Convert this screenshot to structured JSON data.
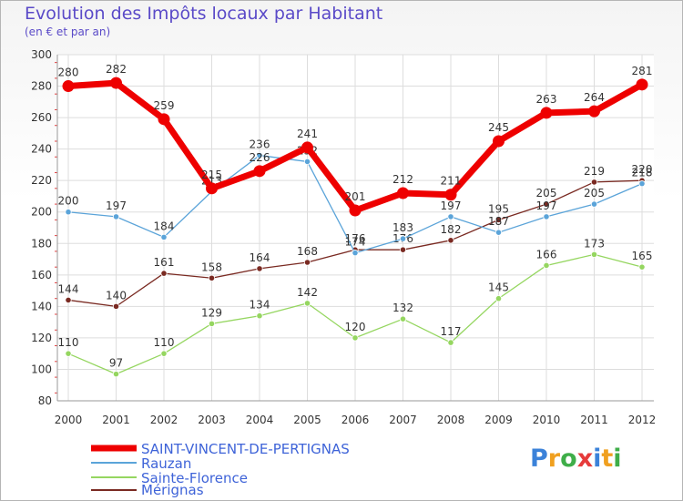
{
  "chart_data": {
    "type": "line",
    "title": "Evolution des Impôts locaux par Habitant",
    "subtitle": "(en € et par an)",
    "xlabel": "",
    "ylabel": "",
    "x": [
      "2000",
      "2001",
      "2002",
      "2003",
      "2004",
      "2005",
      "2006",
      "2007",
      "2008",
      "2009",
      "2010",
      "2011",
      "2012"
    ],
    "ylim": [
      80,
      300
    ],
    "yticks": [
      80,
      100,
      120,
      140,
      160,
      180,
      200,
      220,
      240,
      260,
      280,
      300
    ],
    "grid": true,
    "legend_position": "bottom-left",
    "series": [
      {
        "name": "Mérignas",
        "color": "#7a2a22",
        "values": [
          144,
          140,
          161,
          158,
          164,
          168,
          176,
          176,
          182,
          195,
          205,
          219,
          220
        ]
      },
      {
        "name": "Sainte-Florence",
        "color": "#95d660",
        "values": [
          110,
          97,
          110,
          129,
          134,
          142,
          120,
          132,
          117,
          145,
          166,
          173,
          165
        ]
      },
      {
        "name": "Rauzan",
        "color": "#5ba4d9",
        "values": [
          200,
          197,
          184,
          213,
          236,
          232,
          174,
          183,
          197,
          187,
          197,
          205,
          218
        ]
      },
      {
        "name": "SAINT-VINCENT-DE-PERTIGNAS",
        "color": "#ee0000",
        "values": [
          280,
          282,
          259,
          215,
          226,
          241,
          201,
          212,
          211,
          245,
          263,
          264,
          281
        ]
      }
    ]
  },
  "legend": {
    "items": [
      {
        "label": "SAINT-VINCENT-DE-PERTIGNAS",
        "color": "#ee0000"
      },
      {
        "label": "Rauzan",
        "color": "#5ba4d9"
      },
      {
        "label": "Sainte-Florence",
        "color": "#95d660"
      },
      {
        "label": "Mérignas",
        "color": "#7a2a22"
      }
    ]
  },
  "logo": {
    "letters": [
      "P",
      "r",
      "o",
      "x",
      "i",
      "t",
      "i"
    ],
    "colors": [
      "#3b82d9",
      "#f0a020",
      "#3fae49",
      "#e63b3b",
      "#3b82d9",
      "#f0a020",
      "#3fae49"
    ]
  }
}
